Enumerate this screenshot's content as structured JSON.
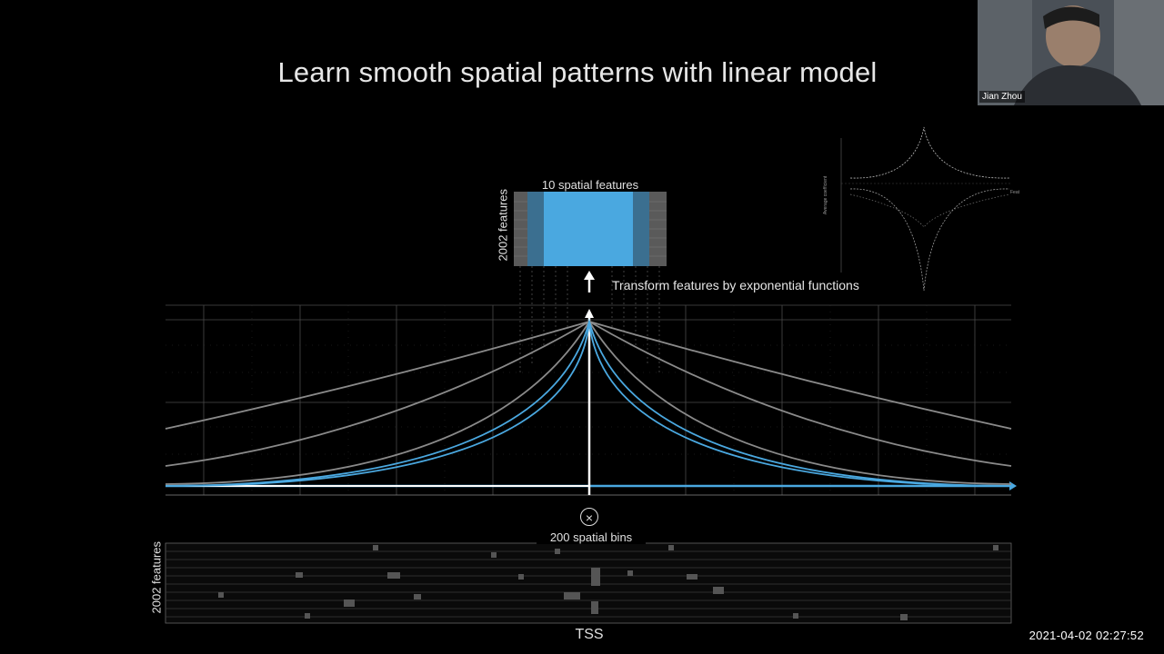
{
  "slide": {
    "title": "Learn smooth spatial patterns with linear model",
    "top_matrix": {
      "caption": "10 spatial features",
      "ylabel": "2002 features"
    },
    "transform_label": "Transform features by exponential functions",
    "multiply_symbol": "×",
    "bottom_matrix": {
      "caption": "200 spatial bins",
      "ylabel": "2002 features",
      "xlabel": "TSS"
    },
    "inset": {
      "ylabel": "Average coefficient",
      "legend": "Feat"
    }
  },
  "webcam": {
    "participant_name": "Jian Zhou"
  },
  "timestamp": "2021-04-02 02:27:52",
  "colors": {
    "background": "#000000",
    "accent_blue": "#4aa8e0",
    "grid": "#555555",
    "gray_curve": "#8a8a8a"
  },
  "icons": [
    "multiply-icon",
    "up-arrow-icon",
    "webcam-feed"
  ]
}
